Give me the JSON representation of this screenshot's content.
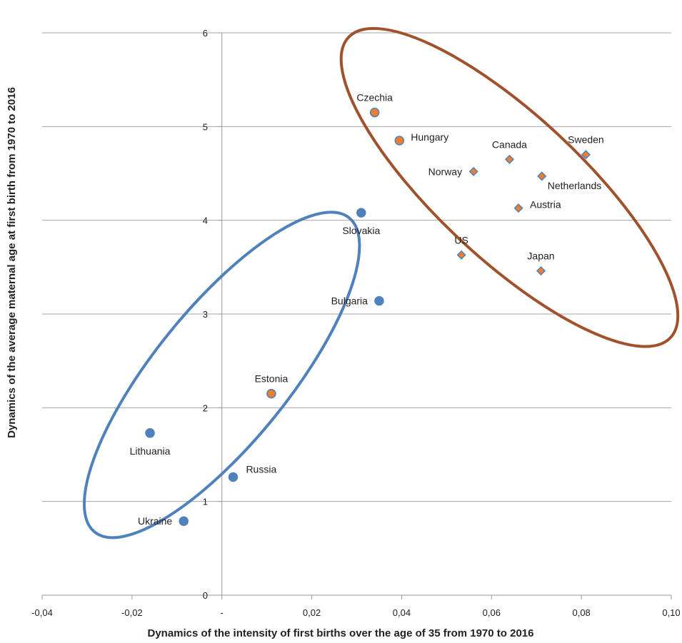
{
  "chart_data": {
    "type": "scatter",
    "xlabel": "Dynamics of the intensity of first births over the age of 35 from 1970 to 2016",
    "ylabel": "Dynamics of the average maternal age at first birth from 1970 to 2016",
    "xlim": [
      -0.04,
      0.1
    ],
    "ylim": [
      0,
      6
    ],
    "x_ticks": [
      -0.04,
      -0.02,
      0,
      0.02,
      0.04,
      0.06,
      0.08,
      0.1
    ],
    "x_tick_labels": [
      "-0,04",
      "-0,02",
      "-",
      "0,02",
      "0,04",
      "0,06",
      "0,08",
      "0,10"
    ],
    "y_ticks": [
      0,
      1,
      2,
      3,
      4,
      5,
      6
    ],
    "y_tick_labels": [
      "0",
      "1",
      "2",
      "3",
      "4",
      "5",
      "6"
    ],
    "grid": "horizontal",
    "points": [
      {
        "label": "Czechia",
        "x": 0.034,
        "y": 5.15,
        "marker": "circle",
        "color": "#ED7D31",
        "label_pos": "above"
      },
      {
        "label": "Hungary",
        "x": 0.0395,
        "y": 4.85,
        "marker": "circle",
        "color": "#ED7D31",
        "label_pos": "right"
      },
      {
        "label": "Canada",
        "x": 0.064,
        "y": 4.65,
        "marker": "diamond",
        "color": "#ED7D31",
        "label_pos": "above"
      },
      {
        "label": "Sweden",
        "x": 0.081,
        "y": 4.7,
        "marker": "diamond",
        "color": "#ED7D31",
        "label_pos": "above"
      },
      {
        "label": "Norway",
        "x": 0.056,
        "y": 4.52,
        "marker": "diamond",
        "color": "#ED7D31",
        "label_pos": "left"
      },
      {
        "label": "Netherlands",
        "x": 0.0712,
        "y": 4.47,
        "marker": "diamond",
        "color": "#ED7D31",
        "label_pos": "below-right"
      },
      {
        "label": "Austria",
        "x": 0.066,
        "y": 4.13,
        "marker": "diamond",
        "color": "#ED7D31",
        "label_pos": "right"
      },
      {
        "label": "US",
        "x": 0.0533,
        "y": 3.63,
        "marker": "diamond",
        "color": "#ED7D31",
        "label_pos": "above"
      },
      {
        "label": "Japan",
        "x": 0.071,
        "y": 3.46,
        "marker": "diamond",
        "color": "#ED7D31",
        "label_pos": "above"
      },
      {
        "label": "Slovakia",
        "x": 0.031,
        "y": 4.08,
        "marker": "circle",
        "color": "#4F81BD",
        "label_pos": "below"
      },
      {
        "label": "Bulgaria",
        "x": 0.035,
        "y": 3.14,
        "marker": "circle",
        "color": "#4F81BD",
        "label_pos": "left"
      },
      {
        "label": "Estonia",
        "x": 0.011,
        "y": 2.15,
        "marker": "circle",
        "color": "#ED7D31",
        "label_pos": "above"
      },
      {
        "label": "Lithuania",
        "x": -0.016,
        "y": 1.73,
        "marker": "circle",
        "color": "#4F81BD",
        "label_pos": "below"
      },
      {
        "label": "Russia",
        "x": 0.0025,
        "y": 1.26,
        "marker": "circle",
        "color": "#4F81BD",
        "label_pos": "above-right"
      },
      {
        "label": "Ukraine",
        "x": -0.0085,
        "y": 0.79,
        "marker": "circle",
        "color": "#4F81BD",
        "label_pos": "left"
      }
    ],
    "groups": [
      {
        "name": "",
        "color": "#A0522D",
        "shape": "ellipse",
        "center": [
          0.064,
          4.35
        ],
        "semi_major": 0.049,
        "semi_minor": 0.016,
        "angle_deg": -43
      },
      {
        "name": "",
        "color": "#4F81BD",
        "shape": "ellipse",
        "center": [
          0.0,
          2.35
        ],
        "semi_major": 0.045,
        "semi_minor": 0.015,
        "angle_deg": 51
      }
    ],
    "colors": {
      "marker_edge": "#4F81BD",
      "grid": "#A6A6A6",
      "axis": "#999999"
    }
  }
}
